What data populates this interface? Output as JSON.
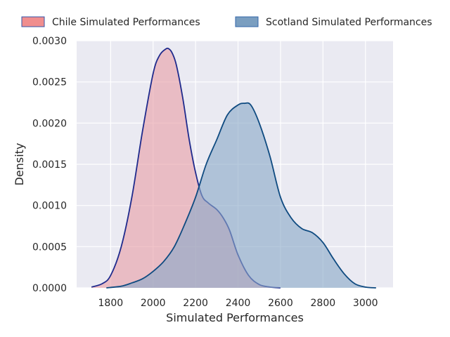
{
  "chart_data": {
    "type": "area",
    "xlabel": "Simulated Performances",
    "ylabel": "Density",
    "xlim": [
      1640,
      3130
    ],
    "ylim": [
      0,
      0.003
    ],
    "xticks": [
      1800,
      2000,
      2200,
      2400,
      2600,
      2800,
      3000
    ],
    "yticks": [
      "0.0000",
      "0.0005",
      "0.0010",
      "0.0015",
      "0.0020",
      "0.0025",
      "0.0030"
    ],
    "grid": true,
    "legend_position": "top",
    "series": [
      {
        "name": "Chile Simulated Performances",
        "fill": "#e8a0a8",
        "line": "#1f2a8c",
        "legend_fill": "#f08e8e",
        "x": [
          1710,
          1760,
          1800,
          1850,
          1900,
          1950,
          2000,
          2030,
          2060,
          2075,
          2090,
          2110,
          2140,
          2170,
          2200,
          2230,
          2260,
          2300,
          2330,
          2360,
          2400,
          2450,
          2500,
          2550,
          2600
        ],
        "y": [
          1e-05,
          5e-05,
          0.00015,
          0.0005,
          0.0011,
          0.0019,
          0.0026,
          0.00282,
          0.0029,
          0.0029,
          0.00285,
          0.0027,
          0.0023,
          0.0018,
          0.0014,
          0.00112,
          0.00103,
          0.00095,
          0.00085,
          0.0007,
          0.0004,
          0.00015,
          4e-05,
          1e-05,
          0.0
        ]
      },
      {
        "name": "Scotland Simulated Performances",
        "fill": "#8aaac8",
        "line": "#0e4a80",
        "legend_fill": "#7a9ec0",
        "x": [
          1780,
          1850,
          1900,
          1950,
          2000,
          2050,
          2100,
          2150,
          2200,
          2250,
          2300,
          2350,
          2400,
          2430,
          2460,
          2500,
          2550,
          2600,
          2650,
          2700,
          2750,
          2800,
          2850,
          2900,
          2950,
          3000,
          3050
        ],
        "y": [
          0.0,
          2e-05,
          6e-05,
          0.00011,
          0.0002,
          0.00032,
          0.0005,
          0.00078,
          0.0011,
          0.0015,
          0.0018,
          0.0021,
          0.00222,
          0.00224,
          0.00222,
          0.002,
          0.0016,
          0.0011,
          0.00085,
          0.00072,
          0.00067,
          0.00055,
          0.00035,
          0.00017,
          5e-05,
          1e-05,
          0.0
        ]
      }
    ]
  }
}
